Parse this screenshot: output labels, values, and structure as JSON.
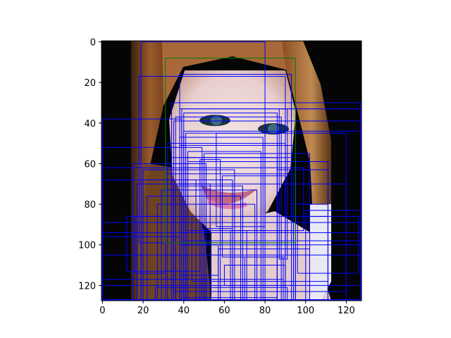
{
  "chart_data": {
    "type": "image-with-bounding-boxes",
    "title": "",
    "xlabel": "",
    "ylabel": "",
    "xlim": [
      -0.5,
      127.5
    ],
    "ylim": [
      127.5,
      -0.5
    ],
    "xticks": [
      0,
      20,
      40,
      60,
      80,
      100,
      120
    ],
    "yticks": [
      0,
      20,
      40,
      60,
      80,
      100,
      120
    ],
    "xtick_labels": [
      "0",
      "20",
      "40",
      "60",
      "80",
      "100",
      "120"
    ],
    "ytick_labels": [
      "0",
      "20",
      "40",
      "60",
      "80",
      "100",
      "120"
    ],
    "image_description": "128x128 pixelated portrait of a woman with long auburn hair on a black background",
    "ground_truth_box": {
      "x0": 31,
      "y0": 8,
      "x1": 95,
      "y1": 99,
      "color": "#008000"
    },
    "box_color": "#0000ff",
    "predicted_boxes": [
      [
        19,
        0,
        80,
        127
      ],
      [
        38,
        16,
        93,
        127
      ],
      [
        18,
        17,
        90,
        99
      ],
      [
        34,
        30,
        127,
        127
      ],
      [
        38,
        33,
        127,
        127
      ],
      [
        39,
        33,
        127,
        100
      ],
      [
        40,
        35,
        86,
        126
      ],
      [
        36,
        37,
        88,
        127
      ],
      [
        0,
        38,
        39,
        127
      ],
      [
        35,
        39,
        127,
        127
      ],
      [
        40,
        44,
        127,
        127
      ],
      [
        41,
        45,
        120,
        127
      ],
      [
        38,
        47,
        79,
        127
      ],
      [
        32,
        50,
        90,
        127
      ],
      [
        38,
        51,
        95,
        127
      ],
      [
        0,
        52,
        49,
        127
      ],
      [
        42,
        54,
        78,
        127
      ],
      [
        50,
        55,
        102,
        127
      ],
      [
        41,
        57,
        86,
        127
      ],
      [
        34,
        57,
        95,
        127
      ],
      [
        48,
        58,
        58,
        127
      ],
      [
        42,
        59,
        111,
        127
      ],
      [
        0,
        62,
        51,
        127
      ],
      [
        15,
        60,
        51,
        127
      ],
      [
        20,
        63,
        65,
        127
      ],
      [
        31,
        65,
        94,
        127
      ],
      [
        0,
        68,
        46,
        127
      ],
      [
        19,
        68,
        64,
        127
      ],
      [
        17,
        70,
        53,
        127
      ],
      [
        36,
        71,
        69,
        127
      ],
      [
        29,
        73,
        76,
        127
      ],
      [
        22,
        76,
        68,
        127
      ],
      [
        27,
        80,
        75,
        127
      ],
      [
        94,
        80,
        111,
        127
      ],
      [
        100,
        83,
        127,
        127
      ],
      [
        16,
        86,
        31,
        114
      ],
      [
        12,
        86,
        48,
        113
      ],
      [
        0,
        89,
        127,
        127
      ],
      [
        0,
        94,
        127,
        105
      ],
      [
        0,
        96,
        38,
        127
      ],
      [
        50,
        92,
        64,
        127
      ],
      [
        63,
        93,
        71,
        127
      ],
      [
        41,
        98,
        127,
        127
      ],
      [
        38,
        100,
        57,
        115
      ],
      [
        57,
        102,
        102,
        127
      ],
      [
        70,
        106,
        89,
        127
      ],
      [
        60,
        110,
        90,
        120
      ],
      [
        0,
        117,
        89,
        127
      ],
      [
        0,
        120,
        127,
        127
      ],
      [
        26,
        121,
        91,
        127
      ],
      [
        96,
        86,
        126,
        114
      ],
      [
        86,
        63,
        111,
        127
      ],
      [
        35,
        70,
        120,
        123
      ],
      [
        56,
        45,
        80,
        91
      ],
      [
        42,
        62,
        99,
        93
      ],
      [
        59,
        66,
        90,
        106
      ],
      [
        87,
        33,
        91,
        107
      ],
      [
        44,
        86,
        111,
        118
      ]
    ]
  }
}
